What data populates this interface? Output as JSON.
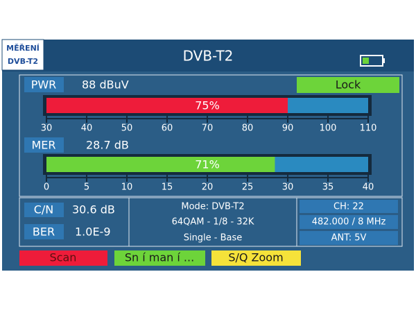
{
  "badge": {
    "line1": "MĚŘENÍ",
    "line2": "DVB-T2"
  },
  "header": {
    "title": "DVB-T2"
  },
  "pwr": {
    "label": "PWR",
    "reading": "88 dBuV",
    "status": "Lock",
    "gauge": {
      "value": 75,
      "value_label": "75%",
      "color": "#ee1c3a",
      "xlim": [
        30,
        110
      ],
      "xticks": [
        30,
        40,
        50,
        60,
        70,
        80,
        90,
        100,
        110
      ]
    }
  },
  "mer": {
    "label": "MER",
    "reading": "28.7 dB",
    "gauge": {
      "value": 71,
      "value_label": "71%",
      "color": "#6dd43a",
      "xlim": [
        0,
        40
      ],
      "xticks": [
        0,
        5,
        10,
        15,
        20,
        25,
        30,
        35,
        40
      ]
    }
  },
  "cn": {
    "label": "C/N",
    "reading": "30.6 dB"
  },
  "ber": {
    "label": "BER",
    "reading": "1.0E-9"
  },
  "signal": {
    "mode": "Mode: DVB-T2",
    "modulation": "64QAM - 1/8 - 32K",
    "profile": "Single - Base"
  },
  "channel": {
    "ch": "CH: 22",
    "frequency": "482.000 / 8 MHz",
    "antenna": "ANT: 5V"
  },
  "buttons": {
    "scan": "Scan",
    "snimani": "Sn í man í ...",
    "zoom": "S/Q Zoom"
  }
}
